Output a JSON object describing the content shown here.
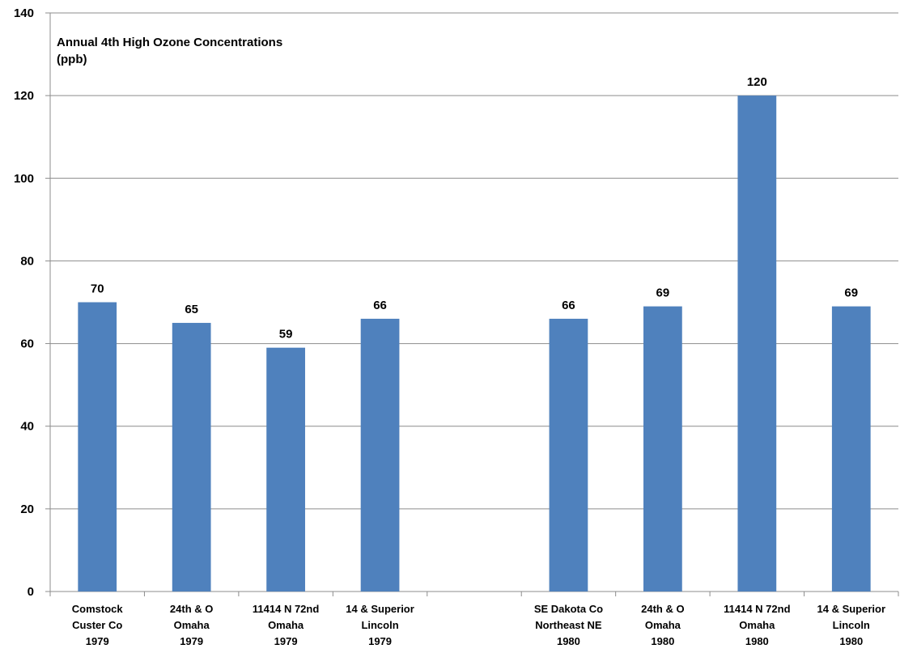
{
  "chart_data": {
    "type": "bar",
    "title_lines": [
      "Annual 4th High Ozone Concentrations",
      "(ppb)"
    ],
    "xlabel": "",
    "ylabel": "",
    "ylim": [
      0,
      140
    ],
    "yticks": [
      0,
      20,
      40,
      60,
      80,
      100,
      120,
      140
    ],
    "grid": true,
    "legend": "none",
    "bar_color": "#4f81bd",
    "categories": [
      [
        "Comstock",
        "Custer Co",
        "1979"
      ],
      [
        "24th & O",
        "Omaha",
        "1979"
      ],
      [
        "11414 N 72nd",
        "Omaha",
        "1979"
      ],
      [
        "14 & Superior",
        "Lincoln",
        "1979"
      ],
      [
        "",
        "",
        ""
      ],
      [
        "SE Dakota Co",
        "Northeast NE",
        "1980"
      ],
      [
        "24th & O",
        "Omaha",
        "1980"
      ],
      [
        "11414 N 72nd",
        "Omaha",
        "1980"
      ],
      [
        "14 & Superior",
        "Lincoln",
        "1980"
      ]
    ],
    "values": [
      70,
      65,
      59,
      66,
      null,
      66,
      69,
      120,
      69
    ]
  }
}
